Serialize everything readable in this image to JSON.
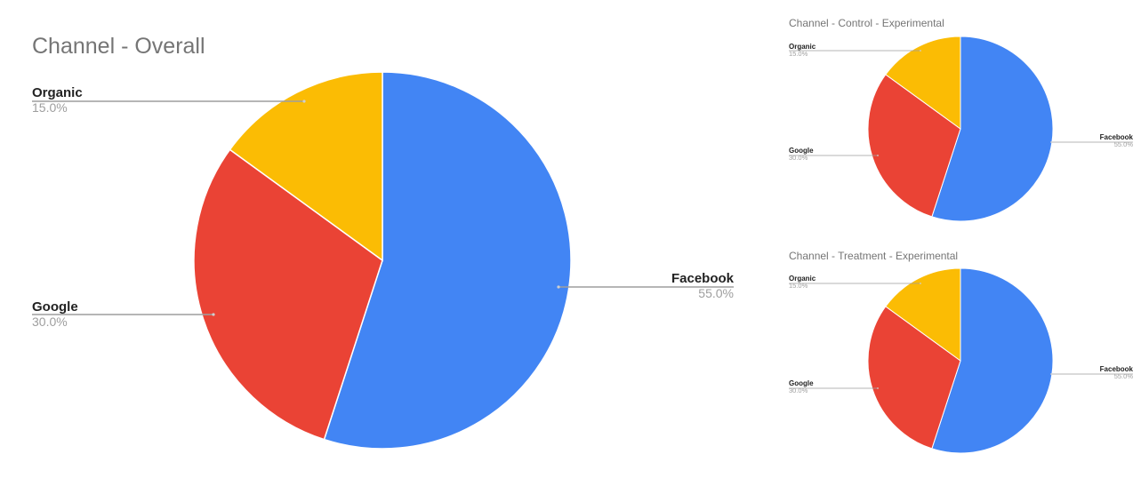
{
  "chart_data": [
    {
      "type": "pie",
      "title": "Channel - Overall",
      "slices": [
        {
          "label": "Facebook",
          "value": 55.0,
          "display": "55.0%",
          "color": "#4285F4"
        },
        {
          "label": "Google",
          "value": 30.0,
          "display": "30.0%",
          "color": "#EA4335"
        },
        {
          "label": "Organic",
          "value": 15.0,
          "display": "15.0%",
          "color": "#FBBC04"
        }
      ],
      "legend": "labeled"
    },
    {
      "type": "pie",
      "title": "Channel - Control - Experimental",
      "slices": [
        {
          "label": "Facebook",
          "value": 55.0,
          "display": "55.0%",
          "color": "#4285F4"
        },
        {
          "label": "Google",
          "value": 30.0,
          "display": "30.0%",
          "color": "#EA4335"
        },
        {
          "label": "Organic",
          "value": 15.0,
          "display": "15.0%",
          "color": "#FBBC04"
        }
      ],
      "legend": "labeled"
    },
    {
      "type": "pie",
      "title": "Channel - Treatment - Experimental",
      "slices": [
        {
          "label": "Facebook",
          "value": 55.0,
          "display": "55.0%",
          "color": "#4285F4"
        },
        {
          "label": "Google",
          "value": 30.0,
          "display": "30.0%",
          "color": "#EA4335"
        },
        {
          "label": "Organic",
          "value": 15.0,
          "display": "15.0%",
          "color": "#FBBC04"
        }
      ],
      "legend": "labeled"
    }
  ]
}
